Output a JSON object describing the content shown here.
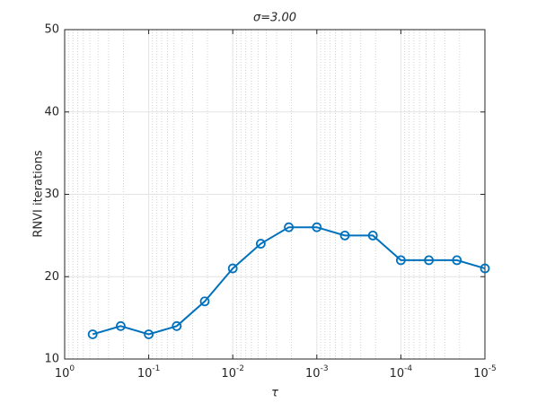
{
  "chart_data": {
    "type": "line",
    "title": "σ=3.00",
    "x_label": "τ",
    "y_label": "RNVI iterations",
    "x_scale": "log",
    "x_reversed": true,
    "grid": true,
    "minor_grid": true,
    "x": [
      0.4642,
      0.2154,
      0.1,
      0.04642,
      0.02154,
      0.01,
      0.004642,
      0.002154,
      0.001,
      0.0004642,
      0.0002154,
      0.0001,
      4.642e-05,
      2.154e-05,
      1e-05
    ],
    "series": [
      {
        "name": "RNVI iterations",
        "color": "#0072bd",
        "values": [
          13,
          14,
          13,
          14,
          17,
          21,
          24,
          26,
          26,
          25,
          25,
          22,
          22,
          22,
          21
        ]
      }
    ],
    "xlim": [
      1,
      1e-05
    ],
    "xticks": [
      {
        "value": 1,
        "label": "10^0"
      },
      {
        "value": 0.1,
        "label": "10^-1"
      },
      {
        "value": 0.01,
        "label": "10^-2"
      },
      {
        "value": 0.001,
        "label": "10^-3"
      },
      {
        "value": 0.0001,
        "label": "10^-4"
      },
      {
        "value": 1e-05,
        "label": "10^-5"
      }
    ],
    "ylim": [
      10,
      50
    ],
    "yticks": [
      10,
      20,
      30,
      40,
      50
    ]
  }
}
